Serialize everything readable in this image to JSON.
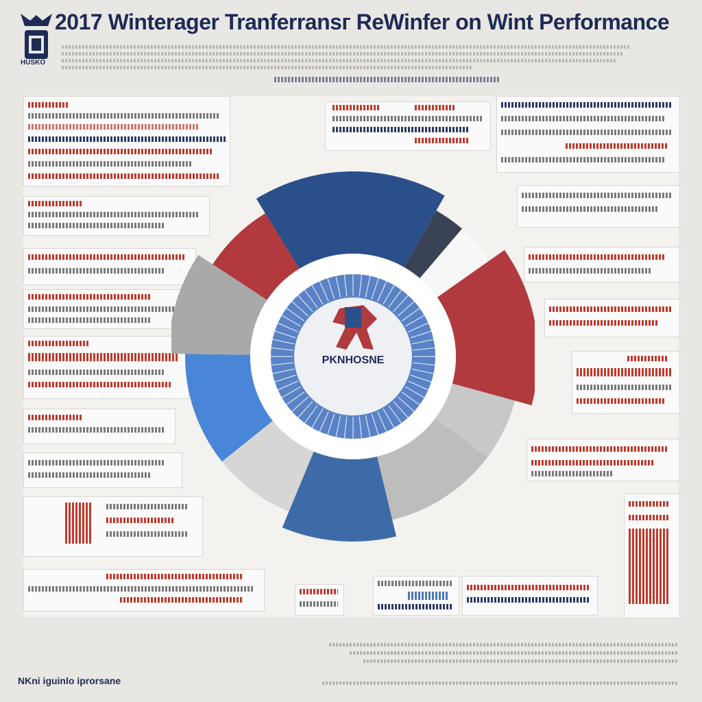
{
  "header": {
    "title": "2017 Winterager Tranferransг ReWinfer on Wint Performance",
    "logo_text": "HUSKO"
  },
  "footer": {
    "left_text": "NKni iguinlo iprorsane"
  },
  "colors": {
    "navy": "#2b4f8a",
    "dark_navy": "#3a4356",
    "red": "#b03a3e",
    "blue": "#4a86d8",
    "steel_blue": "#3e6ba8",
    "gray": "#b8b8b8",
    "light_gray": "#d3d3d3",
    "white": "#ffffff",
    "title": "#1d2b55"
  },
  "chart_data": {
    "type": "pie",
    "title": "2017 Winterager Tranferransг ReWinfer on Wint Performance",
    "slices": [
      {
        "name": "",
        "value": 17,
        "color": "#2b4f8a"
      },
      {
        "name": "",
        "value": 3,
        "color": "#3a4356"
      },
      {
        "name": "",
        "value": 4,
        "color": "#f7f7f7"
      },
      {
        "name": "",
        "value": 14,
        "color": "#b03a3e"
      },
      {
        "name": "",
        "value": 6,
        "color": "#c8c8c8"
      },
      {
        "name": "",
        "value": 11,
        "color": "#bdbdbd"
      },
      {
        "name": "",
        "value": 10,
        "color": "#3e6ba8"
      },
      {
        "name": "",
        "value": 8,
        "color": "#d6d6d6"
      },
      {
        "name": "",
        "value": 11,
        "color": "#4a86d8"
      },
      {
        "name": "",
        "value": 9,
        "color": "#a9a9a9"
      },
      {
        "name": "",
        "value": 7,
        "color": "#b03a3e"
      }
    ],
    "center_label": "PKNHOSNE"
  }
}
